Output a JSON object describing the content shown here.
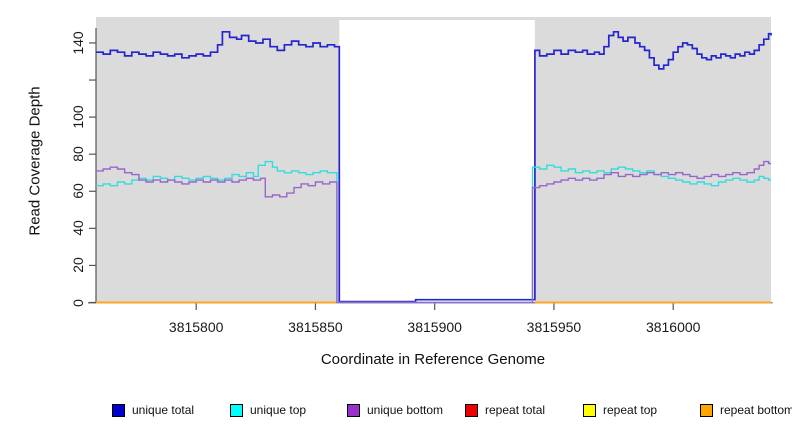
{
  "chart_data": {
    "type": "line",
    "subtype": "step",
    "title": "",
    "xlabel": "Coordinate in Reference Genome",
    "ylabel": "Read Coverage Depth",
    "xlim": [
      3815758,
      3816041
    ],
    "ylim": [
      0,
      154
    ],
    "x_tick_values": [
      3815800,
      3815850,
      3815900,
      3815950,
      3816000
    ],
    "x_tick_labels": [
      "3815800",
      "3815850",
      "3815900",
      "3815950",
      "3816000"
    ],
    "y_tick_values": [
      0,
      20,
      40,
      60,
      80,
      100,
      120,
      140
    ],
    "y_tick_labels": [
      "0",
      "20",
      "40",
      "60",
      "80",
      "100",
      "",
      "140"
    ],
    "plot_background_color": "#DBDBDB",
    "gap_region": {
      "x_start": 3815860,
      "x_end": 3815942,
      "fill": "#FFFFFF"
    },
    "axis_color": "#555555",
    "legend": [
      {
        "label": "unique total",
        "color": "#0000CD"
      },
      {
        "label": "unique top",
        "color": "#00FFFF"
      },
      {
        "label": "unique bottom",
        "color": "#9932CC"
      },
      {
        "label": "repeat total",
        "color": "#EE0000"
      },
      {
        "label": "repeat top",
        "color": "#FFFF00"
      },
      {
        "label": "repeat bottom",
        "color": "#FFA500"
      }
    ],
    "series": [
      {
        "name": "repeat total",
        "color": "#EE0000",
        "width": 1.4,
        "segments": [
          [
            [
              3815758,
              0
            ],
            [
              3815860,
              0
            ]
          ],
          [
            [
              3815942,
              0
            ],
            [
              3816041,
              0
            ]
          ]
        ]
      },
      {
        "name": "repeat top",
        "color": "#FFFF00",
        "width": 1.4,
        "segments": [
          [
            [
              3815758,
              0
            ],
            [
              3815860,
              0
            ]
          ],
          [
            [
              3815942,
              0
            ],
            [
              3816041,
              0
            ]
          ]
        ]
      },
      {
        "name": "repeat bottom",
        "color": "#FFA424",
        "width": 1.8,
        "segments": [
          [
            [
              3815758,
              0
            ],
            [
              3815860,
              0
            ]
          ],
          [
            [
              3815942,
              0
            ],
            [
              3816041,
              0
            ]
          ]
        ]
      },
      {
        "name": "unique total",
        "color": "#2424D0",
        "width": 1.7,
        "segments": [
          [
            [
              3815758,
              135
            ],
            [
              3815761,
              134
            ],
            [
              3815764,
              136
            ],
            [
              3815767,
              135
            ],
            [
              3815770,
              133
            ],
            [
              3815773,
              135
            ],
            [
              3815776,
              134
            ],
            [
              3815779,
              133
            ],
            [
              3815782,
              135
            ],
            [
              3815785,
              134
            ],
            [
              3815788,
              133
            ],
            [
              3815791,
              134
            ],
            [
              3815794,
              132
            ],
            [
              3815797,
              133
            ],
            [
              3815800,
              134
            ],
            [
              3815803,
              133
            ],
            [
              3815806,
              135
            ],
            [
              3815809,
              139
            ],
            [
              3815811,
              146
            ],
            [
              3815814,
              143
            ],
            [
              3815817,
              142
            ],
            [
              3815819,
              144
            ],
            [
              3815822,
              141
            ],
            [
              3815825,
              140
            ],
            [
              3815828,
              142
            ],
            [
              3815831,
              138
            ],
            [
              3815834,
              136
            ],
            [
              3815837,
              139
            ],
            [
              3815840,
              141
            ],
            [
              3815843,
              139
            ],
            [
              3815846,
              138
            ],
            [
              3815849,
              140
            ],
            [
              3815852,
              138
            ],
            [
              3815855,
              139
            ],
            [
              3815858,
              138
            ],
            [
              3815860,
              0.5
            ],
            [
              3815892,
              1.5
            ],
            [
              3815942,
              136
            ],
            [
              3815944,
              133
            ],
            [
              3815947,
              134
            ],
            [
              3815950,
              136
            ],
            [
              3815953,
              134
            ],
            [
              3815956,
              136
            ],
            [
              3815959,
              135
            ],
            [
              3815962,
              136
            ],
            [
              3815964,
              134
            ],
            [
              3815967,
              135
            ],
            [
              3815969,
              134
            ],
            [
              3815971,
              138
            ],
            [
              3815973,
              144
            ],
            [
              3815975,
              146
            ],
            [
              3815977,
              143
            ],
            [
              3815979,
              141
            ],
            [
              3815981,
              143
            ],
            [
              3815984,
              140
            ],
            [
              3815986,
              138
            ],
            [
              3815988,
              136
            ],
            [
              3815990,
              132
            ],
            [
              3815992,
              128
            ],
            [
              3815994,
              126
            ],
            [
              3815996,
              128
            ],
            [
              3815998,
              131
            ],
            [
              3816000,
              135
            ],
            [
              3816002,
              138
            ],
            [
              3816004,
              140
            ],
            [
              3816006,
              139
            ],
            [
              3816008,
              137
            ],
            [
              3816010,
              134
            ],
            [
              3816012,
              132
            ],
            [
              3816014,
              131
            ],
            [
              3816016,
              133
            ],
            [
              3816018,
              132
            ],
            [
              3816020,
              134
            ],
            [
              3816022,
              133
            ],
            [
              3816024,
              132
            ],
            [
              3816026,
              134
            ],
            [
              3816028,
              133
            ],
            [
              3816030,
              135
            ],
            [
              3816032,
              134
            ],
            [
              3816034,
              136
            ],
            [
              3816036,
              139
            ],
            [
              3816038,
              142
            ],
            [
              3816040,
              145
            ],
            [
              3816041,
              144
            ]
          ]
        ]
      },
      {
        "name": "unique top",
        "color": "#33DDDD",
        "width": 1.4,
        "segments": [
          [
            [
              3815758,
              63
            ],
            [
              3815761,
              64
            ],
            [
              3815764,
              63
            ],
            [
              3815767,
              65
            ],
            [
              3815770,
              64
            ],
            [
              3815773,
              66
            ],
            [
              3815776,
              67
            ],
            [
              3815779,
              66
            ],
            [
              3815782,
              68
            ],
            [
              3815785,
              67
            ],
            [
              3815788,
              66
            ],
            [
              3815791,
              68
            ],
            [
              3815794,
              67
            ],
            [
              3815797,
              66
            ],
            [
              3815800,
              67
            ],
            [
              3815803,
              68
            ],
            [
              3815806,
              67
            ],
            [
              3815809,
              66
            ],
            [
              3815812,
              67
            ],
            [
              3815815,
              69
            ],
            [
              3815818,
              68
            ],
            [
              3815821,
              70
            ],
            [
              3815824,
              68
            ],
            [
              3815826,
              74
            ],
            [
              3815829,
              76
            ],
            [
              3815832,
              73
            ],
            [
              3815834,
              71
            ],
            [
              3815837,
              70
            ],
            [
              3815840,
              71
            ],
            [
              3815843,
              70
            ],
            [
              3815846,
              69
            ],
            [
              3815849,
              70
            ],
            [
              3815852,
              71
            ],
            [
              3815855,
              70
            ],
            [
              3815858,
              70
            ],
            [
              3815859,
              0
            ],
            [
              3815941,
              73
            ],
            [
              3815944,
              72
            ],
            [
              3815947,
              74
            ],
            [
              3815950,
              73
            ],
            [
              3815953,
              71
            ],
            [
              3815956,
              72
            ],
            [
              3815959,
              70
            ],
            [
              3815962,
              71
            ],
            [
              3815965,
              70
            ],
            [
              3815968,
              71
            ],
            [
              3815971,
              70
            ],
            [
              3815974,
              72
            ],
            [
              3815977,
              73
            ],
            [
              3815980,
              72
            ],
            [
              3815983,
              71
            ],
            [
              3815986,
              70
            ],
            [
              3815989,
              71
            ],
            [
              3815992,
              69
            ],
            [
              3815995,
              68
            ],
            [
              3815998,
              67
            ],
            [
              3816001,
              66
            ],
            [
              3816004,
              65
            ],
            [
              3816007,
              64
            ],
            [
              3816010,
              65
            ],
            [
              3816013,
              64
            ],
            [
              3816016,
              63
            ],
            [
              3816019,
              65
            ],
            [
              3816022,
              66
            ],
            [
              3816025,
              67
            ],
            [
              3816028,
              66
            ],
            [
              3816031,
              65
            ],
            [
              3816034,
              66
            ],
            [
              3816036,
              68
            ],
            [
              3816038,
              67
            ],
            [
              3816040,
              66
            ],
            [
              3816041,
              66
            ]
          ]
        ]
      },
      {
        "name": "unique bottom",
        "color": "#9966CC",
        "width": 1.4,
        "segments": [
          [
            [
              3815758,
              71
            ],
            [
              3815761,
              72
            ],
            [
              3815764,
              73
            ],
            [
              3815767,
              72
            ],
            [
              3815770,
              70
            ],
            [
              3815773,
              69
            ],
            [
              3815776,
              66
            ],
            [
              3815779,
              65
            ],
            [
              3815782,
              66
            ],
            [
              3815785,
              65
            ],
            [
              3815788,
              66
            ],
            [
              3815791,
              65
            ],
            [
              3815794,
              64
            ],
            [
              3815797,
              65
            ],
            [
              3815800,
              66
            ],
            [
              3815803,
              65
            ],
            [
              3815806,
              66
            ],
            [
              3815809,
              65
            ],
            [
              3815812,
              66
            ],
            [
              3815815,
              65
            ],
            [
              3815818,
              66
            ],
            [
              3815821,
              67
            ],
            [
              3815824,
              66
            ],
            [
              3815827,
              67
            ],
            [
              3815829,
              57
            ],
            [
              3815832,
              58
            ],
            [
              3815835,
              57
            ],
            [
              3815838,
              59
            ],
            [
              3815841,
              62
            ],
            [
              3815844,
              64
            ],
            [
              3815847,
              63
            ],
            [
              3815850,
              65
            ],
            [
              3815853,
              64
            ],
            [
              3815856,
              65
            ],
            [
              3815858,
              65
            ],
            [
              3815859,
              0
            ],
            [
              3815941,
              62
            ],
            [
              3815944,
              63
            ],
            [
              3815947,
              64
            ],
            [
              3815950,
              65
            ],
            [
              3815953,
              66
            ],
            [
              3815956,
              67
            ],
            [
              3815959,
              66
            ],
            [
              3815962,
              67
            ],
            [
              3815965,
              66
            ],
            [
              3815968,
              67
            ],
            [
              3815971,
              69
            ],
            [
              3815974,
              70
            ],
            [
              3815977,
              68
            ],
            [
              3815980,
              69
            ],
            [
              3815983,
              68
            ],
            [
              3815986,
              69
            ],
            [
              3815989,
              70
            ],
            [
              3815992,
              69
            ],
            [
              3815995,
              70
            ],
            [
              3815998,
              69
            ],
            [
              3816001,
              70
            ],
            [
              3816004,
              69
            ],
            [
              3816007,
              68
            ],
            [
              3816010,
              67
            ],
            [
              3816013,
              68
            ],
            [
              3816016,
              69
            ],
            [
              3816019,
              68
            ],
            [
              3816022,
              69
            ],
            [
              3816025,
              70
            ],
            [
              3816028,
              69
            ],
            [
              3816031,
              70
            ],
            [
              3816034,
              72
            ],
            [
              3816036,
              74
            ],
            [
              3816038,
              76
            ],
            [
              3816040,
              75
            ],
            [
              3816041,
              75
            ]
          ]
        ]
      }
    ]
  }
}
